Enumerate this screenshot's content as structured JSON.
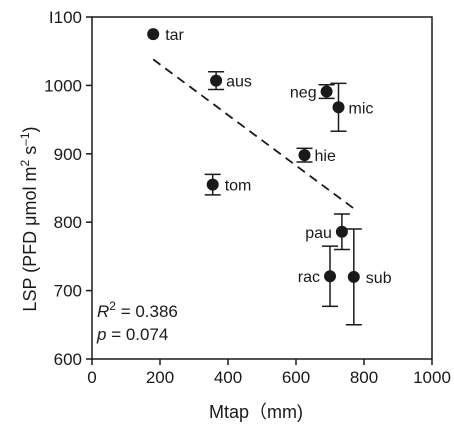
{
  "chart_data": {
    "type": "scatter",
    "xlabel": "Mtap（mm)",
    "ylabel_main": "LSP (PFD μmol m",
    "ylabel_sup1": "2",
    "ylabel_mid": " s",
    "ylabel_sup2": "–1",
    "ylabel_end": ")",
    "xlim": [
      0,
      1000
    ],
    "ylim": [
      600,
      1100
    ],
    "x_ticks": [
      0,
      200,
      400,
      600,
      800,
      1000
    ],
    "x_tick_labels": [
      "0",
      "200",
      "400",
      "600",
      "800",
      "1000"
    ],
    "y_ticks": [
      600,
      700,
      800,
      900,
      1000,
      1100
    ],
    "y_tick_labels": [
      "600",
      "700",
      "800",
      "900",
      "1000",
      "I100"
    ],
    "points": [
      {
        "label": "tar",
        "x": 180,
        "y": 1075,
        "err": 0
      },
      {
        "label": "aus",
        "x": 365,
        "y": 1007,
        "err": 13
      },
      {
        "label": "neg",
        "x": 690,
        "y": 991,
        "err": 10
      },
      {
        "label": "mic",
        "x": 725,
        "y": 968,
        "err": 35
      },
      {
        "label": "hie",
        "x": 625,
        "y": 898,
        "err": 10
      },
      {
        "label": "tom",
        "x": 355,
        "y": 855,
        "err": 15
      },
      {
        "label": "pau",
        "x": 735,
        "y": 786,
        "err": 26
      },
      {
        "label": "rac",
        "x": 700,
        "y": 721,
        "err": 44
      },
      {
        "label": "sub",
        "x": 770,
        "y": 720,
        "err": 70
      }
    ],
    "trendline": {
      "x1": 180,
      "y1": 1038,
      "x2": 770,
      "y2": 820,
      "style": "dashed"
    },
    "annotations": {
      "r2_prefix": "R",
      "r2_sup": "2",
      "r2_value": " = 0.386",
      "p_prefix": "p",
      "p_value": " = 0.074"
    },
    "grid": false,
    "legend": "none"
  }
}
